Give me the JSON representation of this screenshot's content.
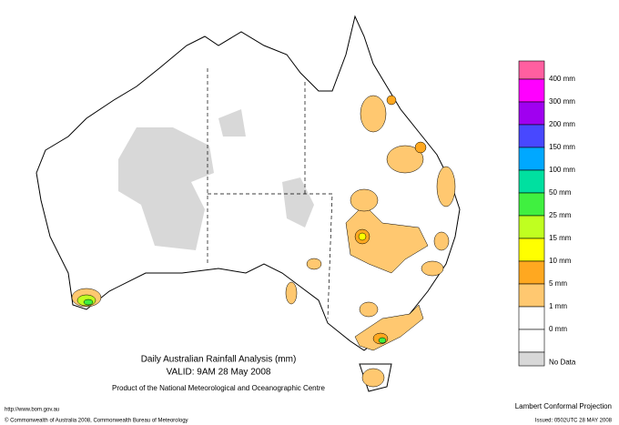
{
  "title": "Daily Australian Rainfall Analysis (mm)",
  "valid": "VALID: 9AM 28 May 2008",
  "product": "Product of the National Meteorological and Oceanographic Centre",
  "url": "http://www.bom.gov.au",
  "copyright": "© Commonwealth of Australia 2008, Commonwealth Bureau of Meteorology",
  "projection": "Lambert Conformal Projection",
  "issued": "Issued: 0502UTC 28 MAY 2008",
  "legend": {
    "colors": [
      "#ff5fa0",
      "#ff00ff",
      "#a000f0",
      "#4848ff",
      "#00a8ff",
      "#00e0a0",
      "#40f040",
      "#c0ff20",
      "#ffff00",
      "#ffa820",
      "#ffc870",
      "#ffffff",
      "#ffffff",
      "#d8d8d8"
    ],
    "labels": [
      "400 mm",
      "300 mm",
      "200 mm",
      "150 mm",
      "100 mm",
      "50 mm",
      "25 mm",
      "15 mm",
      "10 mm",
      "5 mm",
      "1 mm",
      "0 mm",
      "No Data"
    ]
  }
}
